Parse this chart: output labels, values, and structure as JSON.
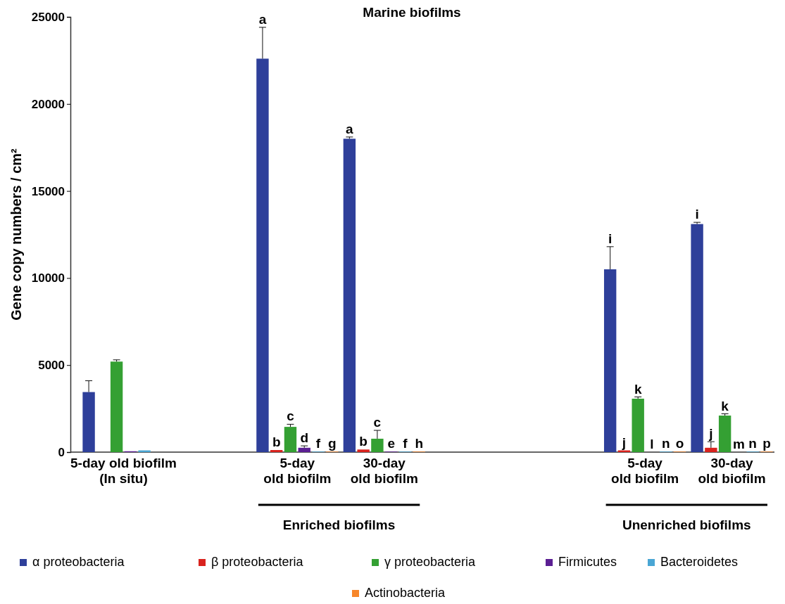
{
  "chart_data": {
    "type": "bar",
    "title": "Marine biofilms",
    "ylabel": "Gene copy numbers / cm²",
    "categories": [
      "5-day old biofilm\n(In situ)",
      null,
      "5-day\nold biofilm",
      "30-day\nold biofilm",
      null,
      null,
      "5-day\nold biofilm",
      "30-day\nold biofilm"
    ],
    "series": [
      {
        "name": "α proteobacteria",
        "color": "#2e3f9a",
        "values": [
          3450,
          null,
          22600,
          18000,
          null,
          null,
          10500,
          13100
        ],
        "errors": [
          650,
          null,
          1800,
          100,
          null,
          null,
          1300,
          100
        ],
        "value_labels": [
          null,
          null,
          "a",
          "a",
          null,
          null,
          "i",
          "i"
        ]
      },
      {
        "name": "β proteobacteria",
        "color": "#d9231e",
        "values": [
          0,
          null,
          120,
          150,
          null,
          null,
          100,
          250
        ],
        "errors": [
          null,
          null,
          null,
          null,
          null,
          null,
          null,
          350
        ],
        "value_labels": [
          null,
          null,
          "b",
          "b",
          null,
          null,
          "j",
          "j"
        ]
      },
      {
        "name": "γ proteobacteria",
        "color": "#34a033",
        "values": [
          5200,
          null,
          1450,
          770,
          null,
          null,
          3070,
          2100
        ],
        "errors": [
          100,
          null,
          150,
          480,
          null,
          null,
          100,
          100
        ],
        "value_labels": [
          null,
          null,
          "c",
          "c",
          null,
          null,
          "k",
          "k"
        ]
      },
      {
        "name": "Firmicutes",
        "color": "#5b1f93",
        "values": [
          50,
          null,
          250,
          30,
          null,
          null,
          0,
          0
        ],
        "errors": [
          null,
          null,
          110,
          null,
          null,
          null,
          null,
          null
        ],
        "value_labels": [
          null,
          null,
          "d",
          "e",
          null,
          null,
          "l",
          "m"
        ]
      },
      {
        "name": "Bacteroidetes",
        "color": "#4aa6d4",
        "values": [
          100,
          null,
          30,
          30,
          null,
          null,
          30,
          30
        ],
        "value_labels": [
          null,
          null,
          "f",
          "f",
          null,
          null,
          "n",
          "n"
        ]
      },
      {
        "name": "Actinobacteria",
        "color": "#f7862a",
        "values": [
          0,
          null,
          30,
          30,
          null,
          null,
          30,
          30
        ],
        "value_labels": [
          null,
          null,
          "g",
          "h",
          null,
          null,
          "o",
          "p"
        ]
      }
    ],
    "ylim": [
      0,
      25000
    ],
    "yticks": [
      0,
      5000,
      10000,
      15000,
      20000,
      25000
    ],
    "grid": false,
    "legend": "bottom",
    "annotations": [
      "Enriched biofilms",
      "Unenriched biofilms"
    ]
  }
}
